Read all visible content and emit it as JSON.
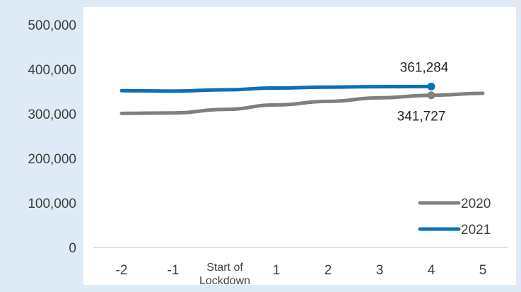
{
  "colors": {
    "outer_background": "#deebf7",
    "plot_background": "#ffffff",
    "axis_line": "#d9d9d9",
    "series_2020": "#7f7f7f",
    "series_2021": "#0b6fba"
  },
  "chart_data": {
    "type": "line",
    "categories": [
      "-2",
      "-1",
      "Start of Lockdown",
      "1",
      "2",
      "3",
      "4",
      "5"
    ],
    "category_label_lines": [
      [
        "-2"
      ],
      [
        "-1"
      ],
      [
        "Start of",
        "Lockdown"
      ],
      [
        "1"
      ],
      [
        "2"
      ],
      [
        "3"
      ],
      [
        "4"
      ],
      [
        "5"
      ]
    ],
    "ylim": [
      0,
      500000
    ],
    "yticks": [
      0,
      100000,
      200000,
      300000,
      400000,
      500000
    ],
    "ytick_labels": [
      "0",
      "100,000",
      "200,000",
      "300,000",
      "400,000",
      "500,000"
    ],
    "grid": false,
    "legend_position": "bottom-right",
    "series": [
      {
        "name": "2020",
        "color": "#7f7f7f",
        "values": [
          301000,
          302000,
          310000,
          320000,
          328000,
          336000,
          341727,
          346000
        ],
        "marker_index": 6,
        "data_label": "341,727"
      },
      {
        "name": "2021",
        "color": "#0b6fba",
        "values": [
          352000,
          351000,
          354000,
          358000,
          360000,
          361000,
          361284,
          null
        ],
        "marker_index": 6,
        "data_label": "361,284"
      }
    ]
  }
}
